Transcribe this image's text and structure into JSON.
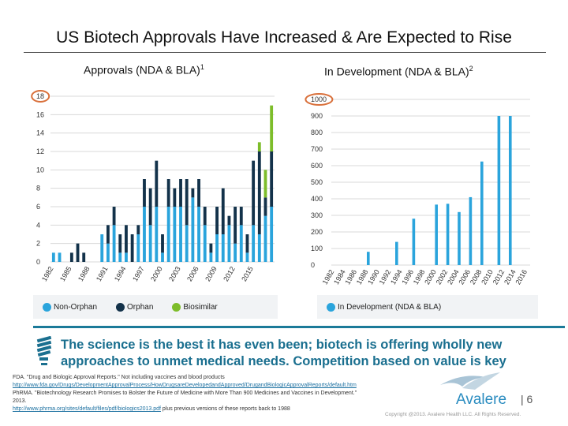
{
  "title": "US Biotech Approvals Have Increased & Are Expected to Rise",
  "takeaway": "The science is the best it has even been; biotech is offering wholly new approaches to unmet medical needs. Competition based on value is key",
  "references": [
    {
      "text": "FDA. \"Drug and Biologic Approval Reports.\" Not including vaccines and blood products"
    },
    {
      "link": "http://www.fda.gov/Drugs/DevelopmentApprovalProcess/HowDrugsareDevelopedandApproved/DrugandBiologicApprovalReports/default.htm"
    },
    {
      "text": "PhRMA. \"Biotechnology Research Promises to Bolster the Future of Medicine with More Than 900 Medicines and Vaccines in Development.\" 2013."
    },
    {
      "link": "http://www.phrma.org/sites/default/files/pdf/biologics2013.pdf",
      "text": " plus previous versions of these reports back to 1988"
    }
  ],
  "footer": {
    "brand": "Avalere",
    "page": "| 6",
    "copyright": "Copyright @2013. Avalere Health LLC. All Rights Reserved."
  },
  "colors": {
    "non_orphan": "#2aa4dc",
    "orphan": "#13324a",
    "biosimilar": "#7dbd2a",
    "highlight": "#d9703b",
    "accent": "#1a6f8f"
  },
  "chart_data": [
    {
      "type": "bar",
      "stacked": true,
      "title": "Approvals (NDA & BLA)",
      "title_sup": "1",
      "categories": [
        1982,
        1983,
        1984,
        1985,
        1986,
        1987,
        1988,
        1989,
        1990,
        1991,
        1992,
        1993,
        1994,
        1995,
        1996,
        1997,
        1998,
        1999,
        2000,
        2001,
        2002,
        2003,
        2004,
        2005,
        2006,
        2007,
        2008,
        2009,
        2010,
        2011,
        2012,
        2013,
        2014,
        2015,
        2016,
        2017,
        2018
      ],
      "tick_labels": [
        "1982",
        "1985",
        "1988",
        "1991",
        "1994",
        "1997",
        "2000",
        "2003",
        "2006",
        "2009",
        "2012",
        "2015"
      ],
      "yticks": [
        "0",
        "2",
        "4",
        "6",
        "8",
        "10",
        "12",
        "14",
        "16",
        "18"
      ],
      "ylim": [
        0,
        18
      ],
      "grid": true,
      "legend_placement": "bottom",
      "highlighted_tick": "18",
      "series": [
        {
          "name": "Non-Orphan",
          "values": [
            1,
            1,
            0,
            0,
            0,
            0,
            0,
            0,
            3,
            2,
            4,
            1,
            1,
            0,
            3,
            6,
            4,
            6,
            1,
            6,
            6,
            6,
            4,
            7,
            6,
            4,
            1,
            3,
            3,
            4,
            2,
            4,
            1,
            4,
            3,
            5,
            6
          ]
        },
        {
          "name": "Orphan",
          "values": [
            0,
            0,
            0,
            1,
            2,
            1,
            0,
            0,
            0,
            2,
            2,
            2,
            3,
            3,
            1,
            3,
            4,
            5,
            2,
            3,
            2,
            3,
            5,
            1,
            3,
            2,
            1,
            3,
            5,
            1,
            4,
            2,
            2,
            7,
            9,
            2,
            6
          ]
        },
        {
          "name": "Biosimilar",
          "values": [
            0,
            0,
            0,
            0,
            0,
            0,
            0,
            0,
            0,
            0,
            0,
            0,
            0,
            0,
            0,
            0,
            0,
            0,
            0,
            0,
            0,
            0,
            0,
            0,
            0,
            0,
            0,
            0,
            0,
            0,
            0,
            0,
            0,
            0,
            1,
            3,
            5
          ]
        }
      ]
    },
    {
      "type": "bar",
      "title": "In Development (NDA & BLA)",
      "title_sup": "2",
      "categories": [
        1982,
        1983,
        1984,
        1985,
        1986,
        1987,
        1988,
        1989,
        1990,
        1991,
        1992,
        1993,
        1994,
        1995,
        1996,
        1997,
        1998,
        1999,
        2000,
        2001,
        2002,
        2003,
        2004,
        2005,
        2006,
        2007,
        2008,
        2009,
        2010,
        2011,
        2012,
        2013,
        2014,
        2015,
        2016
      ],
      "tick_labels": [
        "1982",
        "1984",
        "1986",
        "1988",
        "1990",
        "1992",
        "1994",
        "1996",
        "1998",
        "2000",
        "2002",
        "2004",
        "2006",
        "2008",
        "2010",
        "2012",
        "2014",
        "2016"
      ],
      "yticks": [
        "0",
        "100",
        "200",
        "300",
        "400",
        "500",
        "600",
        "700",
        "800",
        "900",
        "1000"
      ],
      "ylim": [
        0,
        1000
      ],
      "grid": true,
      "legend_placement": "bottom",
      "highlighted_tick": "1000",
      "series": [
        {
          "name": "In Development (NDA & BLA)",
          "values": [
            0,
            0,
            0,
            0,
            0,
            0,
            80,
            0,
            0,
            0,
            0,
            140,
            0,
            0,
            280,
            0,
            0,
            0,
            365,
            0,
            370,
            0,
            320,
            0,
            410,
            0,
            625,
            0,
            0,
            900,
            0,
            900,
            0,
            0,
            0
          ]
        }
      ]
    }
  ]
}
